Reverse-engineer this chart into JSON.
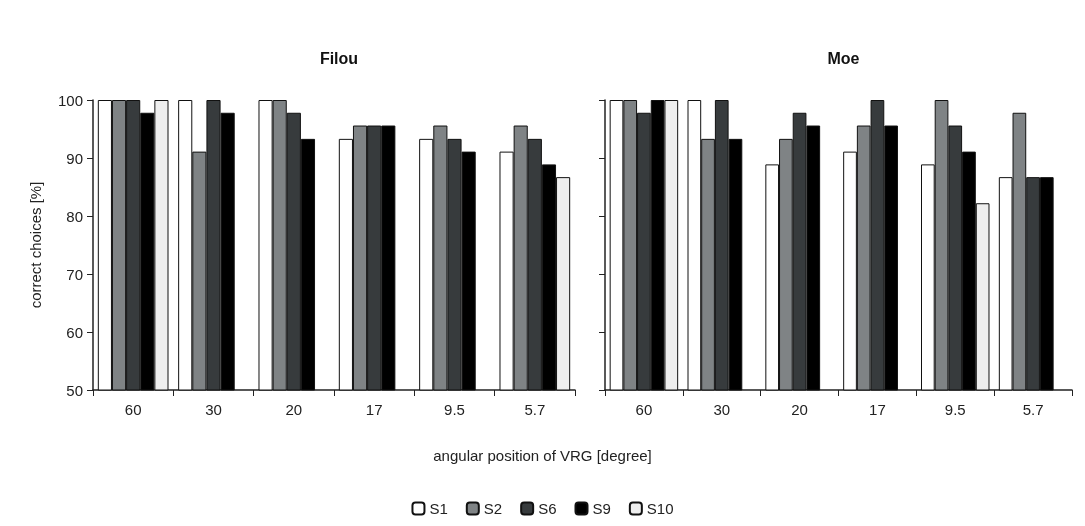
{
  "chart_data": [
    {
      "type": "bar",
      "title": "Filou",
      "ylabel": "correct choices [%]",
      "xlabel": "angular position of VRG [degree]",
      "categories": [
        "60",
        "30",
        "20",
        "17",
        "9.5",
        "5.7"
      ],
      "ylim": [
        50,
        100
      ],
      "yticks": [
        50,
        60,
        70,
        80,
        90,
        100
      ],
      "grid": false,
      "legend": "bottom",
      "series": [
        {
          "name": "S1",
          "color": "#ffffff",
          "values": [
            100,
            100,
            100,
            93.3,
            93.3,
            91.1
          ]
        },
        {
          "name": "S2",
          "color": "#7f8385",
          "values": [
            100,
            91.1,
            100,
            95.6,
            95.6,
            95.6
          ]
        },
        {
          "name": "S6",
          "color": "#373b3d",
          "values": [
            100,
            100,
            97.8,
            95.6,
            93.3,
            93.3
          ]
        },
        {
          "name": "S9",
          "color": "#000000",
          "values": [
            97.8,
            97.8,
            93.3,
            95.6,
            91.1,
            88.9
          ]
        },
        {
          "name": "S10",
          "color": "#eeeeee",
          "values": [
            100,
            null,
            null,
            null,
            null,
            86.7
          ]
        }
      ]
    },
    {
      "type": "bar",
      "title": "Moe",
      "categories": [
        "60",
        "30",
        "20",
        "17",
        "9.5",
        "5.7"
      ],
      "ylim": [
        50,
        100
      ],
      "yticks": [
        50,
        60,
        70,
        80,
        90,
        100
      ],
      "grid": false,
      "tick_labels": "x",
      "series": [
        {
          "color": "#ffffff",
          "values": [
            100,
            100,
            88.9,
            91.1,
            88.9,
            86.7
          ]
        },
        {
          "color": "#7f8385",
          "values": [
            100,
            93.3,
            93.3,
            95.6,
            100,
            97.8
          ]
        },
        {
          "color": "#373b3d",
          "values": [
            97.8,
            100,
            97.8,
            100,
            95.6,
            86.7
          ]
        },
        {
          "color": "#000000",
          "values": [
            100,
            93.3,
            95.6,
            95.6,
            91.1,
            86.7
          ]
        },
        {
          "color": "#eeeeee",
          "values": [
            100,
            null,
            null,
            null,
            82.2,
            null
          ]
        }
      ]
    }
  ]
}
